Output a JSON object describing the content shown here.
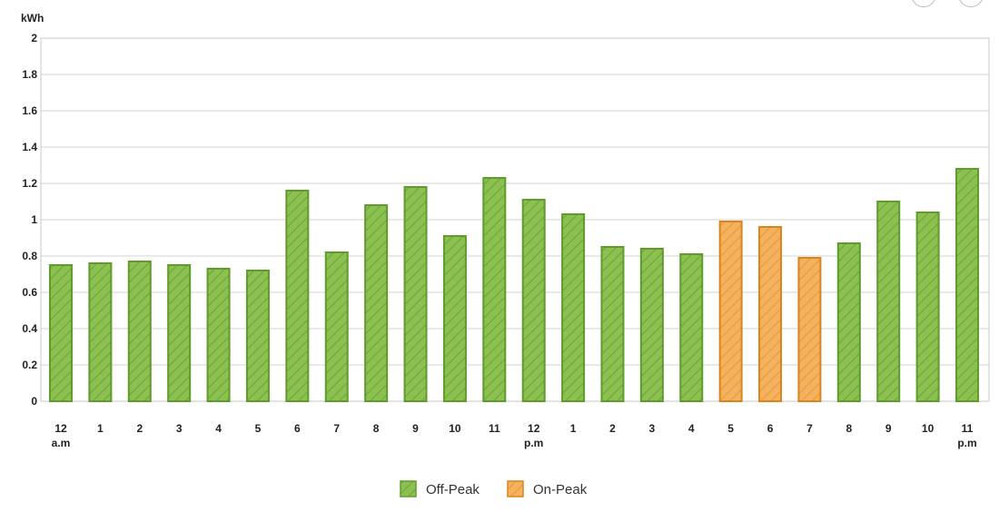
{
  "chart_data": {
    "type": "bar",
    "ylabel": "kWh",
    "ylim": [
      0,
      2
    ],
    "yticks": [
      "0",
      "0.2",
      "0.4",
      "0.6",
      "0.8",
      "1",
      "1.2",
      "1.4",
      "1.6",
      "1.8",
      "2"
    ],
    "grid": true,
    "categories": [
      {
        "hour": "12",
        "period": "a.m"
      },
      {
        "hour": "1",
        "period": ""
      },
      {
        "hour": "2",
        "period": ""
      },
      {
        "hour": "3",
        "period": ""
      },
      {
        "hour": "4",
        "period": ""
      },
      {
        "hour": "5",
        "period": ""
      },
      {
        "hour": "6",
        "period": ""
      },
      {
        "hour": "7",
        "period": ""
      },
      {
        "hour": "8",
        "period": ""
      },
      {
        "hour": "9",
        "period": ""
      },
      {
        "hour": "10",
        "period": ""
      },
      {
        "hour": "11",
        "period": ""
      },
      {
        "hour": "12",
        "period": "p.m"
      },
      {
        "hour": "1",
        "period": ""
      },
      {
        "hour": "2",
        "period": ""
      },
      {
        "hour": "3",
        "period": ""
      },
      {
        "hour": "4",
        "period": ""
      },
      {
        "hour": "5",
        "period": ""
      },
      {
        "hour": "6",
        "period": ""
      },
      {
        "hour": "7",
        "period": ""
      },
      {
        "hour": "8",
        "period": ""
      },
      {
        "hour": "9",
        "period": ""
      },
      {
        "hour": "10",
        "period": ""
      },
      {
        "hour": "11",
        "period": "p.m"
      }
    ],
    "values": [
      0.75,
      0.76,
      0.77,
      0.75,
      0.73,
      0.72,
      1.16,
      0.82,
      1.08,
      1.18,
      0.91,
      1.23,
      1.11,
      1.03,
      0.85,
      0.84,
      0.81,
      0.99,
      0.96,
      0.79,
      0.87,
      1.1,
      1.04,
      1.28
    ],
    "rate": [
      "Off-Peak",
      "Off-Peak",
      "Off-Peak",
      "Off-Peak",
      "Off-Peak",
      "Off-Peak",
      "Off-Peak",
      "Off-Peak",
      "Off-Peak",
      "Off-Peak",
      "Off-Peak",
      "Off-Peak",
      "Off-Peak",
      "Off-Peak",
      "Off-Peak",
      "Off-Peak",
      "Off-Peak",
      "On-Peak",
      "On-Peak",
      "On-Peak",
      "Off-Peak",
      "Off-Peak",
      "Off-Peak",
      "Off-Peak"
    ],
    "legend_position": "bottom-center",
    "series": [
      {
        "name": "Off-Peak",
        "fill": "#8cc152",
        "stroke": "#5e9c2c",
        "hatch": "#6ea53a"
      },
      {
        "name": "On-Peak",
        "fill": "#f5b25e",
        "stroke": "#d9841f",
        "hatch": "#e59a3e"
      }
    ]
  }
}
